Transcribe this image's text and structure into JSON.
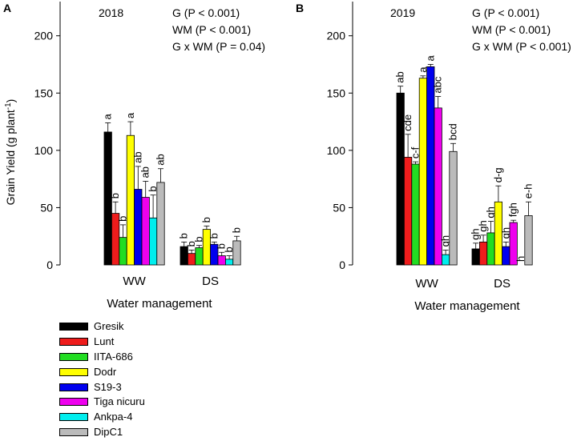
{
  "figure": {
    "legend": [
      {
        "name": "Gresik",
        "color": "#000000"
      },
      {
        "name": "Lunt",
        "color": "#ee1c1c"
      },
      {
        "name": "IITA-686",
        "color": "#22dd22"
      },
      {
        "name": "Dodr",
        "color": "#ffff00"
      },
      {
        "name": "S19-3",
        "color": "#0000ee"
      },
      {
        "name": "Tiga nicuru",
        "color": "#ee00ee"
      },
      {
        "name": "Ankpa-4",
        "color": "#00eeee"
      },
      {
        "name": "DipC1",
        "color": "#bbbbbb"
      }
    ]
  },
  "chart_data": [
    {
      "panel_label": "A",
      "type": "bar",
      "title": "2018",
      "xlabel": "Water management",
      "ylabel": "Grain Yield (g plant",
      "ylabel_superscript": "-1",
      "ylabel_close": ")",
      "ylim": [
        0,
        200
      ],
      "yticks": [
        "0",
        "50",
        "100",
        "150",
        "200"
      ],
      "categories": [
        "WW",
        "DS"
      ],
      "stats": [
        "G (P < 0.001)",
        "WM (P < 0.001)",
        "G x WM (P = 0.04)"
      ],
      "series": [
        {
          "name": "Gresik",
          "values": [
            116,
            16
          ],
          "errors": [
            8,
            4
          ],
          "letters": [
            "a",
            "b"
          ]
        },
        {
          "name": "Lunt",
          "values": [
            45,
            10
          ],
          "errors": [
            10,
            3
          ],
          "letters": [
            "b",
            "b"
          ]
        },
        {
          "name": "IITA-686",
          "values": [
            24,
            15
          ],
          "errors": [
            11,
            2
          ],
          "letters": [
            "b",
            "b"
          ]
        },
        {
          "name": "Dodr",
          "values": [
            113,
            31
          ],
          "errors": [
            12,
            3
          ],
          "letters": [
            "a",
            "b"
          ]
        },
        {
          "name": "S19-3",
          "values": [
            66,
            18
          ],
          "errors": [
            20,
            2
          ],
          "letters": [
            "ab",
            "b"
          ]
        },
        {
          "name": "Tiga nicuru",
          "values": [
            59,
            8
          ],
          "errors": [
            14,
            3
          ],
          "letters": [
            "ab",
            "b"
          ]
        },
        {
          "name": "Ankpa-4",
          "values": [
            41,
            5
          ],
          "errors": [
            20,
            3
          ],
          "letters": [
            "b",
            "b"
          ]
        },
        {
          "name": "DipC1",
          "values": [
            72,
            21
          ],
          "errors": [
            12,
            4
          ],
          "letters": [
            "ab",
            "b"
          ]
        }
      ]
    },
    {
      "panel_label": "B",
      "type": "bar",
      "title": "2019",
      "xlabel": "Water management",
      "ylabel": "",
      "ylim": [
        0,
        200
      ],
      "yticks": [
        "0",
        "50",
        "100",
        "150",
        "200"
      ],
      "categories": [
        "WW",
        "DS"
      ],
      "stats": [
        "G (P < 0.001)",
        "WM (P < 0.001)",
        "G x WM (P < 0.001)"
      ],
      "series": [
        {
          "name": "Gresik",
          "values": [
            150,
            14
          ],
          "errors": [
            6,
            5
          ],
          "letters": [
            "ab",
            "gh"
          ]
        },
        {
          "name": "Lunt",
          "values": [
            94,
            20
          ],
          "errors": [
            20,
            6
          ],
          "letters": [
            "cde",
            "gh"
          ]
        },
        {
          "name": "IITA-686",
          "values": [
            88,
            28
          ],
          "errors": [
            2,
            10
          ],
          "letters": [
            "c-f",
            "gh"
          ]
        },
        {
          "name": "Dodr",
          "values": [
            163,
            55
          ],
          "errors": [
            2,
            14
          ],
          "letters": [
            "a",
            "d-g"
          ]
        },
        {
          "name": "S19-3",
          "values": [
            173,
            16
          ],
          "errors": [
            2,
            4
          ],
          "letters": [
            "a",
            "gh"
          ]
        },
        {
          "name": "Tiga nicuru",
          "values": [
            137,
            37
          ],
          "errors": [
            10,
            2
          ],
          "letters": [
            "abc",
            "fgh"
          ]
        },
        {
          "name": "Ankpa-4",
          "values": [
            9,
            0
          ],
          "errors": [
            4,
            0
          ],
          "letters": [
            "gh",
            "h"
          ]
        },
        {
          "name": "DipC1",
          "values": [
            99,
            43
          ],
          "errors": [
            7,
            12
          ],
          "letters": [
            "bcd",
            "e-h"
          ]
        }
      ]
    }
  ]
}
